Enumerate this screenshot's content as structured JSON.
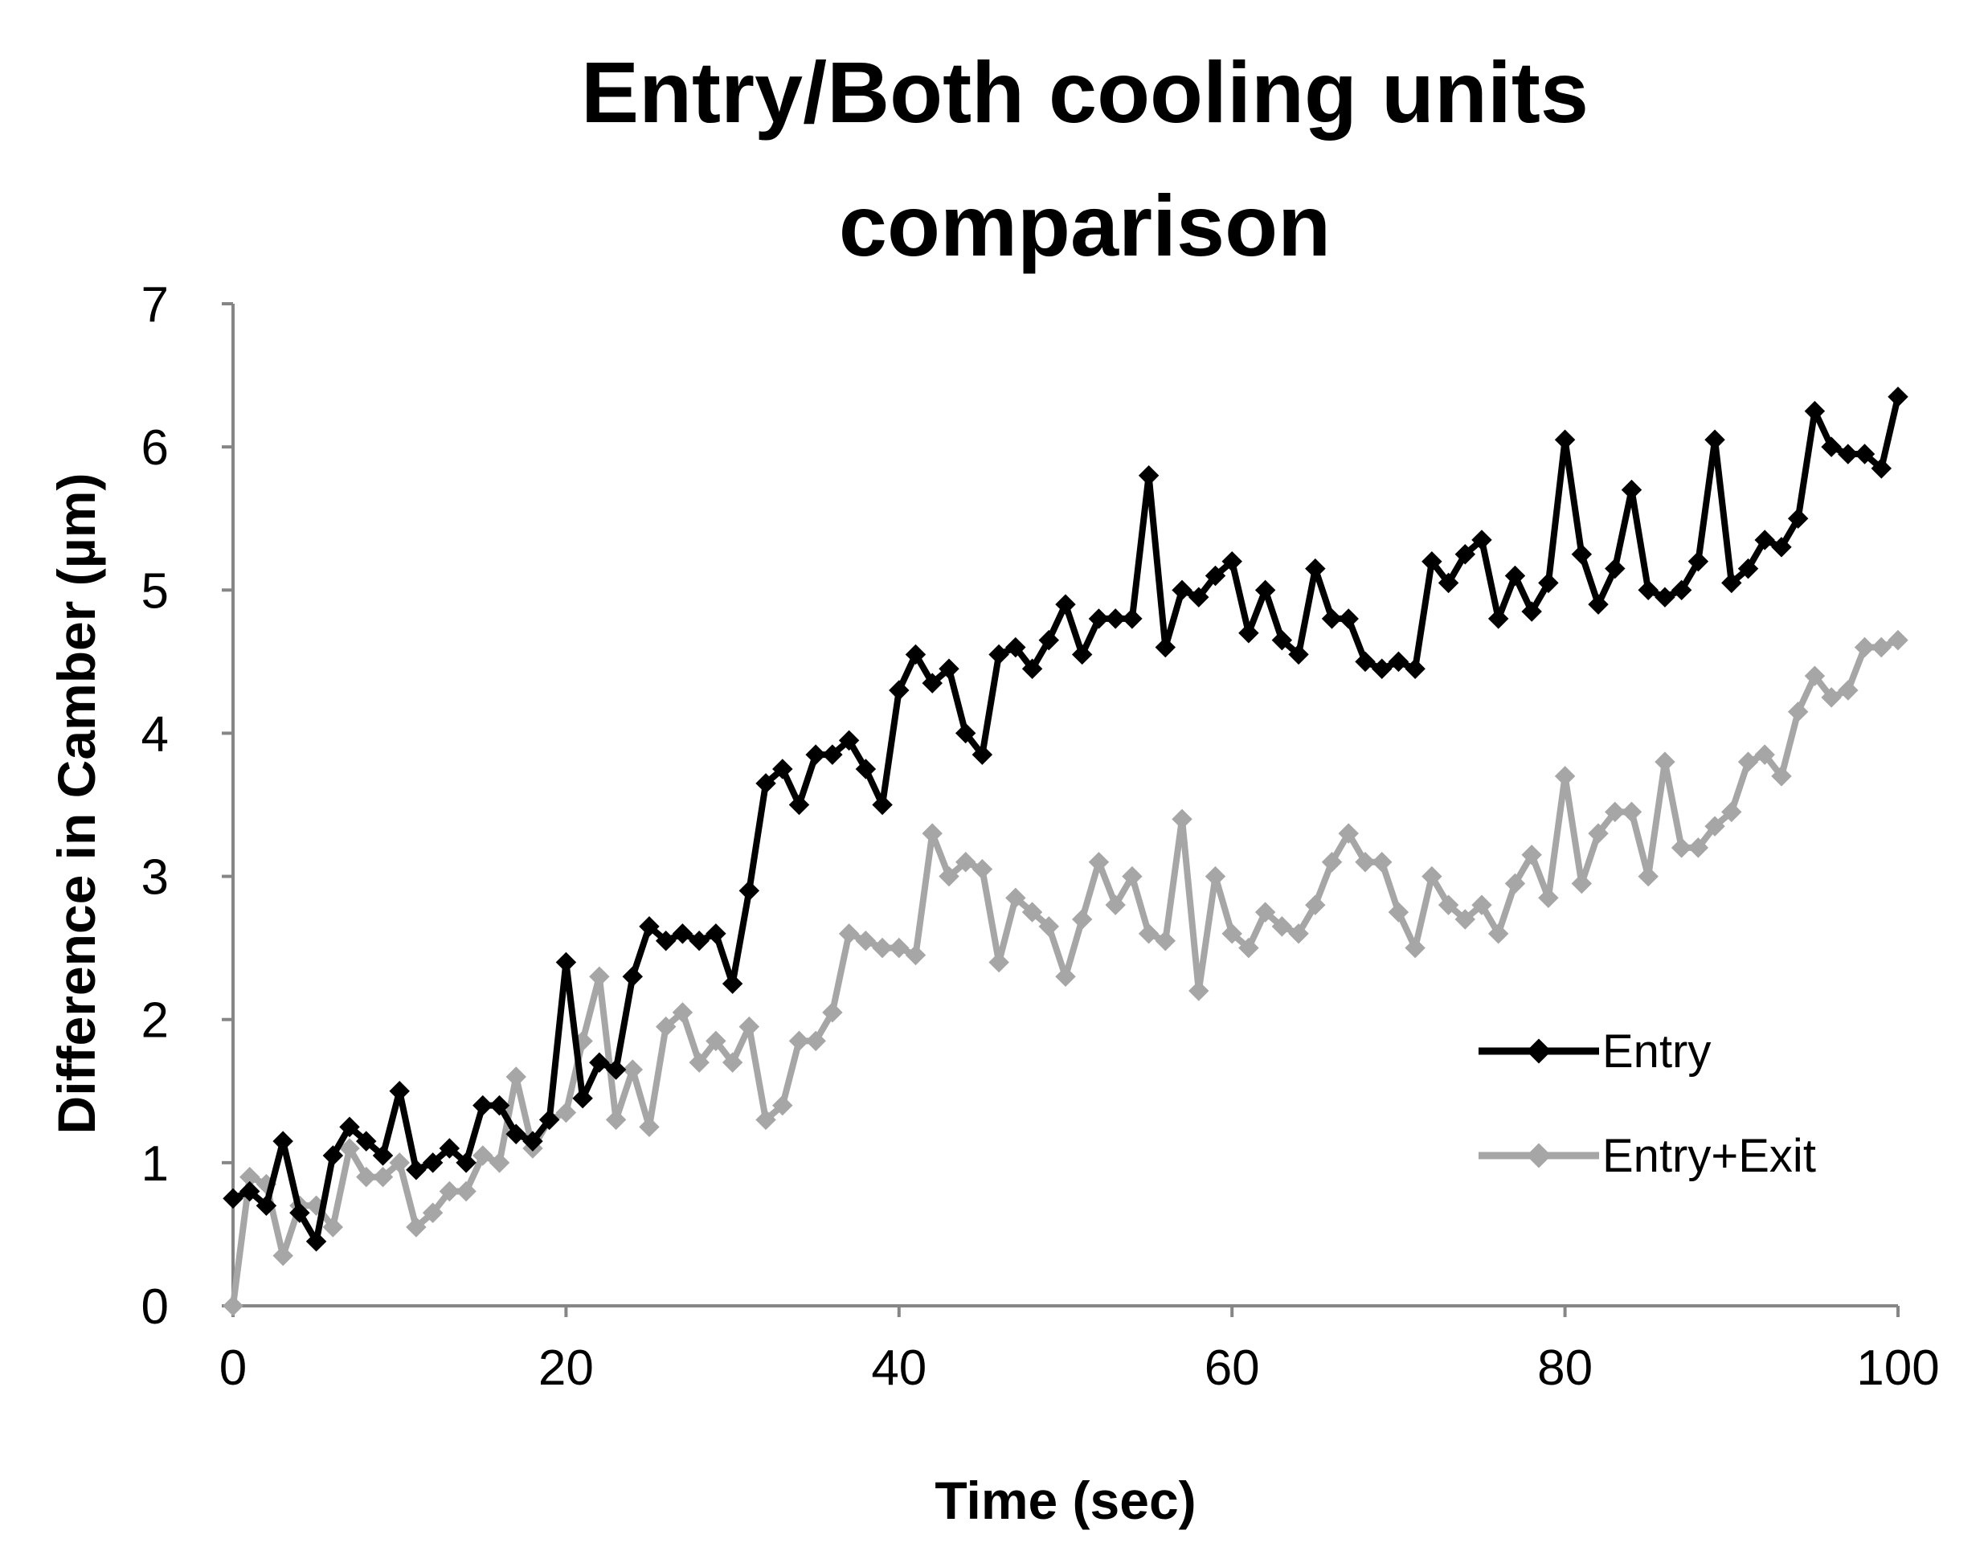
{
  "chart_data": {
    "type": "line",
    "title_lines": [
      "Entry/Both cooling units",
      "comparison"
    ],
    "xlabel": "Time (sec)",
    "ylabel": "Difference in Camber (µm)",
    "xlim": [
      0,
      100
    ],
    "ylim": [
      0,
      7
    ],
    "xticks": [
      0,
      20,
      40,
      60,
      80,
      100
    ],
    "yticks": [
      0,
      1,
      2,
      3,
      4,
      5,
      6,
      7
    ],
    "grid": false,
    "legend_position": "right",
    "series": [
      {
        "name": "Entry",
        "color": "#000000",
        "x": [
          0,
          1,
          2,
          3,
          4,
          5,
          6,
          7,
          8,
          9,
          10,
          11,
          12,
          13,
          14,
          15,
          16,
          17,
          18,
          19,
          20,
          21,
          22,
          23,
          24,
          25,
          26,
          27,
          28,
          29,
          30,
          31,
          32,
          33,
          34,
          35,
          36,
          37,
          38,
          39,
          40,
          41,
          42,
          43,
          44,
          45,
          46,
          47,
          48,
          49,
          50,
          51,
          52,
          53,
          54,
          55,
          56,
          57,
          58,
          59,
          60,
          61,
          62,
          63,
          64,
          65,
          66,
          67,
          68,
          69,
          70,
          71,
          72,
          73,
          74,
          75,
          76,
          77,
          78,
          79,
          80,
          81,
          82,
          83,
          84,
          85,
          86,
          87,
          88,
          89,
          90,
          91,
          92,
          93,
          94,
          95,
          96,
          97,
          98,
          99,
          100
        ],
        "y": [
          0.75,
          0.8,
          0.7,
          1.15,
          0.65,
          0.45,
          1.05,
          1.25,
          1.15,
          1.05,
          1.5,
          0.95,
          1.0,
          1.1,
          1.0,
          1.4,
          1.4,
          1.2,
          1.15,
          1.3,
          2.4,
          1.45,
          1.7,
          1.65,
          2.3,
          2.65,
          2.55,
          2.6,
          2.55,
          2.6,
          2.25,
          2.9,
          3.65,
          3.75,
          3.5,
          3.85,
          3.85,
          3.95,
          3.75,
          3.5,
          4.3,
          4.55,
          4.35,
          4.45,
          4.0,
          3.85,
          4.55,
          4.6,
          4.45,
          4.65,
          4.9,
          4.55,
          4.8,
          4.8,
          4.8,
          5.8,
          4.6,
          5.0,
          4.95,
          5.1,
          5.2,
          4.7,
          5.0,
          4.65,
          4.55,
          5.15,
          4.8,
          4.8,
          4.5,
          4.45,
          4.5,
          4.45,
          5.2,
          5.05,
          5.25,
          5.35,
          4.8,
          5.1,
          4.85,
          5.05,
          6.05,
          5.25,
          4.9,
          5.15,
          5.7,
          5.0,
          4.95,
          5.0,
          5.2,
          6.05,
          5.05,
          5.15,
          5.35,
          5.3,
          5.5,
          6.25,
          6.0,
          5.95,
          5.95,
          5.85,
          6.35
        ]
      },
      {
        "name": "Entry+Exit",
        "color": "#a6a6a6",
        "x": [
          0,
          1,
          2,
          3,
          4,
          5,
          6,
          7,
          8,
          9,
          10,
          11,
          12,
          13,
          14,
          15,
          16,
          17,
          18,
          19,
          20,
          21,
          22,
          23,
          24,
          25,
          26,
          27,
          28,
          29,
          30,
          31,
          32,
          33,
          34,
          35,
          36,
          37,
          38,
          39,
          40,
          41,
          42,
          43,
          44,
          45,
          46,
          47,
          48,
          49,
          50,
          51,
          52,
          53,
          54,
          55,
          56,
          57,
          58,
          59,
          60,
          61,
          62,
          63,
          64,
          65,
          66,
          67,
          68,
          69,
          70,
          71,
          72,
          73,
          74,
          75,
          76,
          77,
          78,
          79,
          80,
          81,
          82,
          83,
          84,
          85,
          86,
          87,
          88,
          89,
          90,
          91,
          92,
          93,
          94,
          95,
          96,
          97,
          98,
          99,
          100
        ],
        "y": [
          0.0,
          0.9,
          0.85,
          0.35,
          0.7,
          0.7,
          0.55,
          1.1,
          0.9,
          0.9,
          1.0,
          0.55,
          0.65,
          0.8,
          0.8,
          1.05,
          1.0,
          1.6,
          1.1,
          1.3,
          1.35,
          1.85,
          2.3,
          1.3,
          1.65,
          1.25,
          1.95,
          2.05,
          1.7,
          1.85,
          1.7,
          1.95,
          1.3,
          1.4,
          1.85,
          1.85,
          2.05,
          2.6,
          2.55,
          2.5,
          2.5,
          2.45,
          3.3,
          3.0,
          3.1,
          3.05,
          2.4,
          2.85,
          2.75,
          2.65,
          2.3,
          2.7,
          3.1,
          2.8,
          3.0,
          2.6,
          2.55,
          3.4,
          2.2,
          3.0,
          2.6,
          2.5,
          2.75,
          2.65,
          2.6,
          2.8,
          3.1,
          3.3,
          3.1,
          3.1,
          2.75,
          2.5,
          3.0,
          2.8,
          2.7,
          2.8,
          2.6,
          2.95,
          3.15,
          2.85,
          3.7,
          2.95,
          3.3,
          3.45,
          3.45,
          3.0,
          3.8,
          3.2,
          3.2,
          3.35,
          3.45,
          3.8,
          3.85,
          3.7,
          4.15,
          4.4,
          4.25,
          4.3,
          4.6,
          4.6,
          4.65
        ]
      }
    ]
  }
}
